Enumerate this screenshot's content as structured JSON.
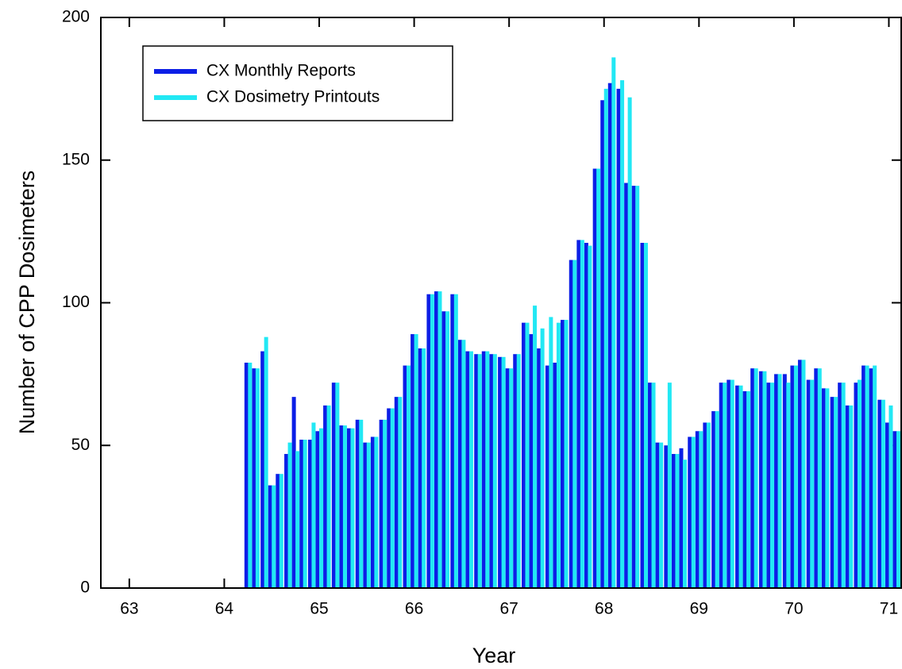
{
  "chart_data": {
    "type": "bar",
    "xlabel": "Year",
    "ylabel": "Number of CPP Dosimeters",
    "x": [
      64.25,
      64.33,
      64.42,
      64.5,
      64.58,
      64.67,
      64.75,
      64.83,
      64.92,
      65,
      65.08,
      65.17,
      65.25,
      65.33,
      65.42,
      65.5,
      65.58,
      65.67,
      65.75,
      65.83,
      65.92,
      66,
      66.08,
      66.17,
      66.25,
      66.33,
      66.42,
      66.5,
      66.58,
      66.67,
      66.75,
      66.83,
      66.92,
      67,
      67.08,
      67.17,
      67.25,
      67.33,
      67.42,
      67.5,
      67.58,
      67.67,
      67.75,
      67.83,
      67.92,
      68,
      68.08,
      68.17,
      68.25,
      68.33,
      68.42,
      68.5,
      68.58,
      68.67,
      68.75,
      68.83,
      68.92,
      69,
      69.08,
      69.17,
      69.25,
      69.33,
      69.42,
      69.5,
      69.58,
      69.67,
      69.75,
      69.83,
      69.92,
      70,
      70.08,
      70.17,
      70.25,
      70.33,
      70.42,
      70.5,
      70.58,
      70.67,
      70.75,
      70.83,
      70.92,
      71,
      71.08
    ],
    "series": [
      {
        "name": "CX Monthly Reports",
        "color": "#0c1ee6",
        "values": [
          79,
          77,
          83,
          36,
          40,
          47,
          67,
          52,
          52,
          55,
          64,
          72,
          57,
          56,
          59,
          51,
          53,
          59,
          63,
          67,
          78,
          89,
          84,
          103,
          104,
          97,
          103,
          87,
          83,
          82,
          83,
          82,
          81,
          77,
          82,
          93,
          89,
          84,
          78,
          79,
          94,
          115,
          122,
          121,
          147,
          171,
          177,
          175,
          142,
          141,
          121,
          72,
          51,
          50,
          47,
          49,
          53,
          55,
          58,
          62,
          72,
          73,
          71,
          69,
          77,
          76,
          72,
          75,
          75,
          78,
          80,
          73,
          77,
          70,
          67,
          72,
          64,
          72,
          78,
          77,
          66,
          58,
          55
        ]
      },
      {
        "name": "CX Dosimetry Printouts",
        "color": "#22e8f4",
        "values": [
          79,
          77,
          88,
          36,
          40,
          51,
          48,
          52,
          58,
          56,
          64,
          72,
          57,
          56,
          59,
          51,
          53,
          59,
          63,
          67,
          78,
          89,
          84,
          103,
          104,
          97,
          103,
          87,
          83,
          82,
          83,
          82,
          81,
          77,
          82,
          93,
          99,
          91,
          95,
          93,
          94,
          115,
          122,
          120,
          147,
          175,
          186,
          178,
          172,
          141,
          121,
          72,
          51,
          72,
          47,
          45,
          53,
          55,
          58,
          62,
          72,
          73,
          71,
          69,
          77,
          76,
          72,
          75,
          72,
          78,
          80,
          73,
          77,
          70,
          67,
          72,
          64,
          73,
          78,
          78,
          66,
          64,
          55
        ]
      }
    ],
    "xlim": [
      62.7,
      71.13
    ],
    "xticks": [
      63,
      64,
      65,
      66,
      67,
      68,
      69,
      70,
      71
    ],
    "ylim": [
      0,
      200
    ],
    "yticks": [
      0,
      50,
      100,
      150,
      200
    ],
    "grid": false,
    "legend": "upper left"
  }
}
